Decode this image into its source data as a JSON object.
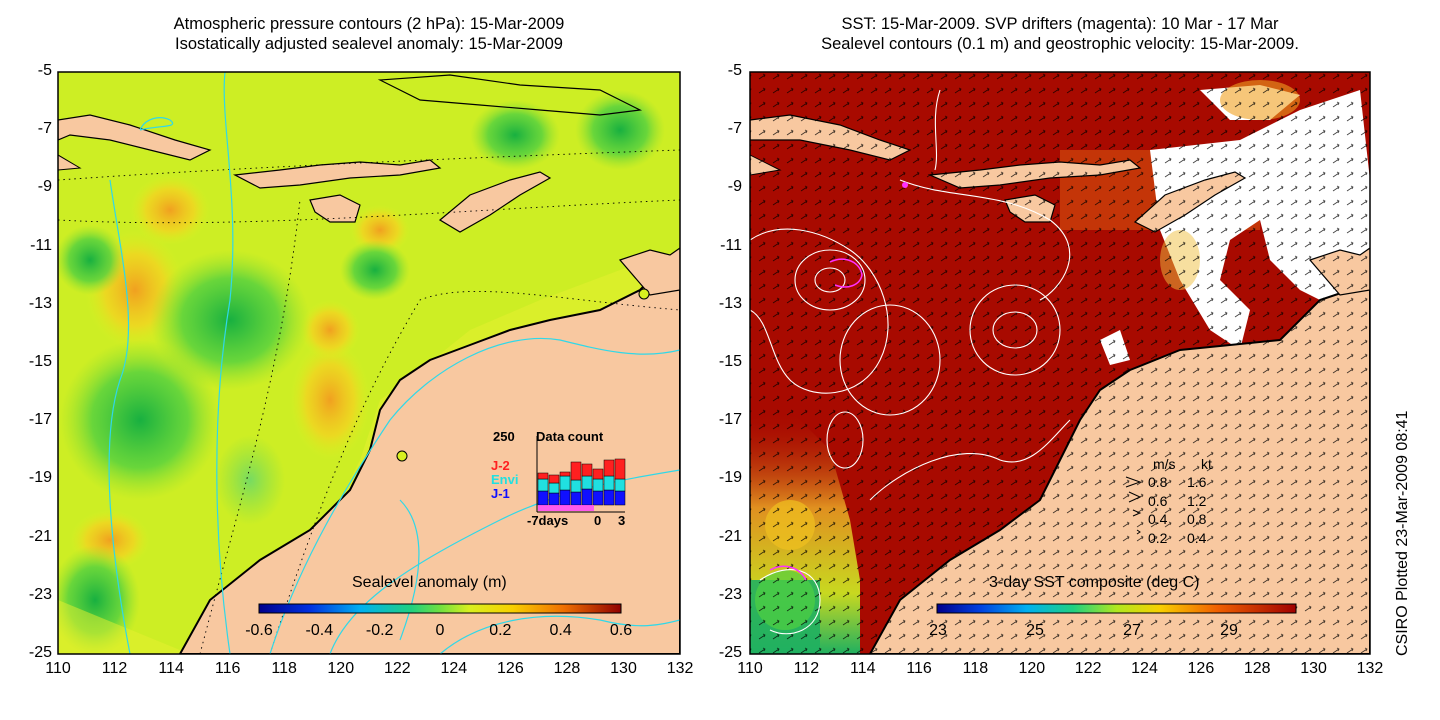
{
  "left_panel": {
    "title_line1": "Atmospheric pressure contours (2 hPa): 15-Mar-2009",
    "title_line2": "Isostatically adjusted sealevel anomaly: 15-Mar-2009",
    "colorbar_label": "Sealevel anomaly (m)",
    "colorbar_ticks": [
      "-0.6",
      "-0.4",
      "-0.2",
      "0",
      "0.2",
      "0.4",
      "0.6"
    ],
    "data_count": {
      "title": "Data count",
      "max_label": "250",
      "x_labels": [
        "-7days",
        "0",
        "3"
      ],
      "legend": [
        {
          "label": "J-2",
          "color": "#ff2020"
        },
        {
          "label": "Envi",
          "color": "#20e0e0"
        },
        {
          "label": "J-1",
          "color": "#1010ff"
        }
      ]
    }
  },
  "right_panel": {
    "title_line1": "SST: 15-Mar-2009. SVP drifters (magenta): 10 Mar - 17 Mar",
    "title_line2": "Sealevel contours (0.1 m) and geostrophic velocity: 15-Mar-2009.",
    "colorbar_label": "3-day SST composite (deg C)",
    "colorbar_ticks": [
      "23",
      "25",
      "27",
      "29"
    ],
    "velocity_legend": {
      "header_ms": "m/s",
      "header_kt": "kt",
      "rows": [
        {
          "ms": "0.8",
          "kt": "1.6"
        },
        {
          "ms": "0.6",
          "kt": "1.2"
        },
        {
          "ms": "0.4",
          "kt": "0.8"
        },
        {
          "ms": "0.2",
          "kt": "0.4"
        }
      ]
    }
  },
  "axes": {
    "y_ticks": [
      "-5",
      "-7",
      "-9",
      "-11",
      "-13",
      "-15",
      "-17",
      "-19",
      "-21",
      "-23",
      "-25"
    ],
    "x_ticks": [
      "110",
      "112",
      "114",
      "116",
      "118",
      "120",
      "122",
      "124",
      "126",
      "128",
      "130",
      "132"
    ]
  },
  "credit": "CSIRO Plotted 23-Mar-2009 08:41",
  "colors": {
    "land": "#f8c8a0",
    "sst_warm": "#a80a00",
    "sla_mid": "#d8f020"
  }
}
